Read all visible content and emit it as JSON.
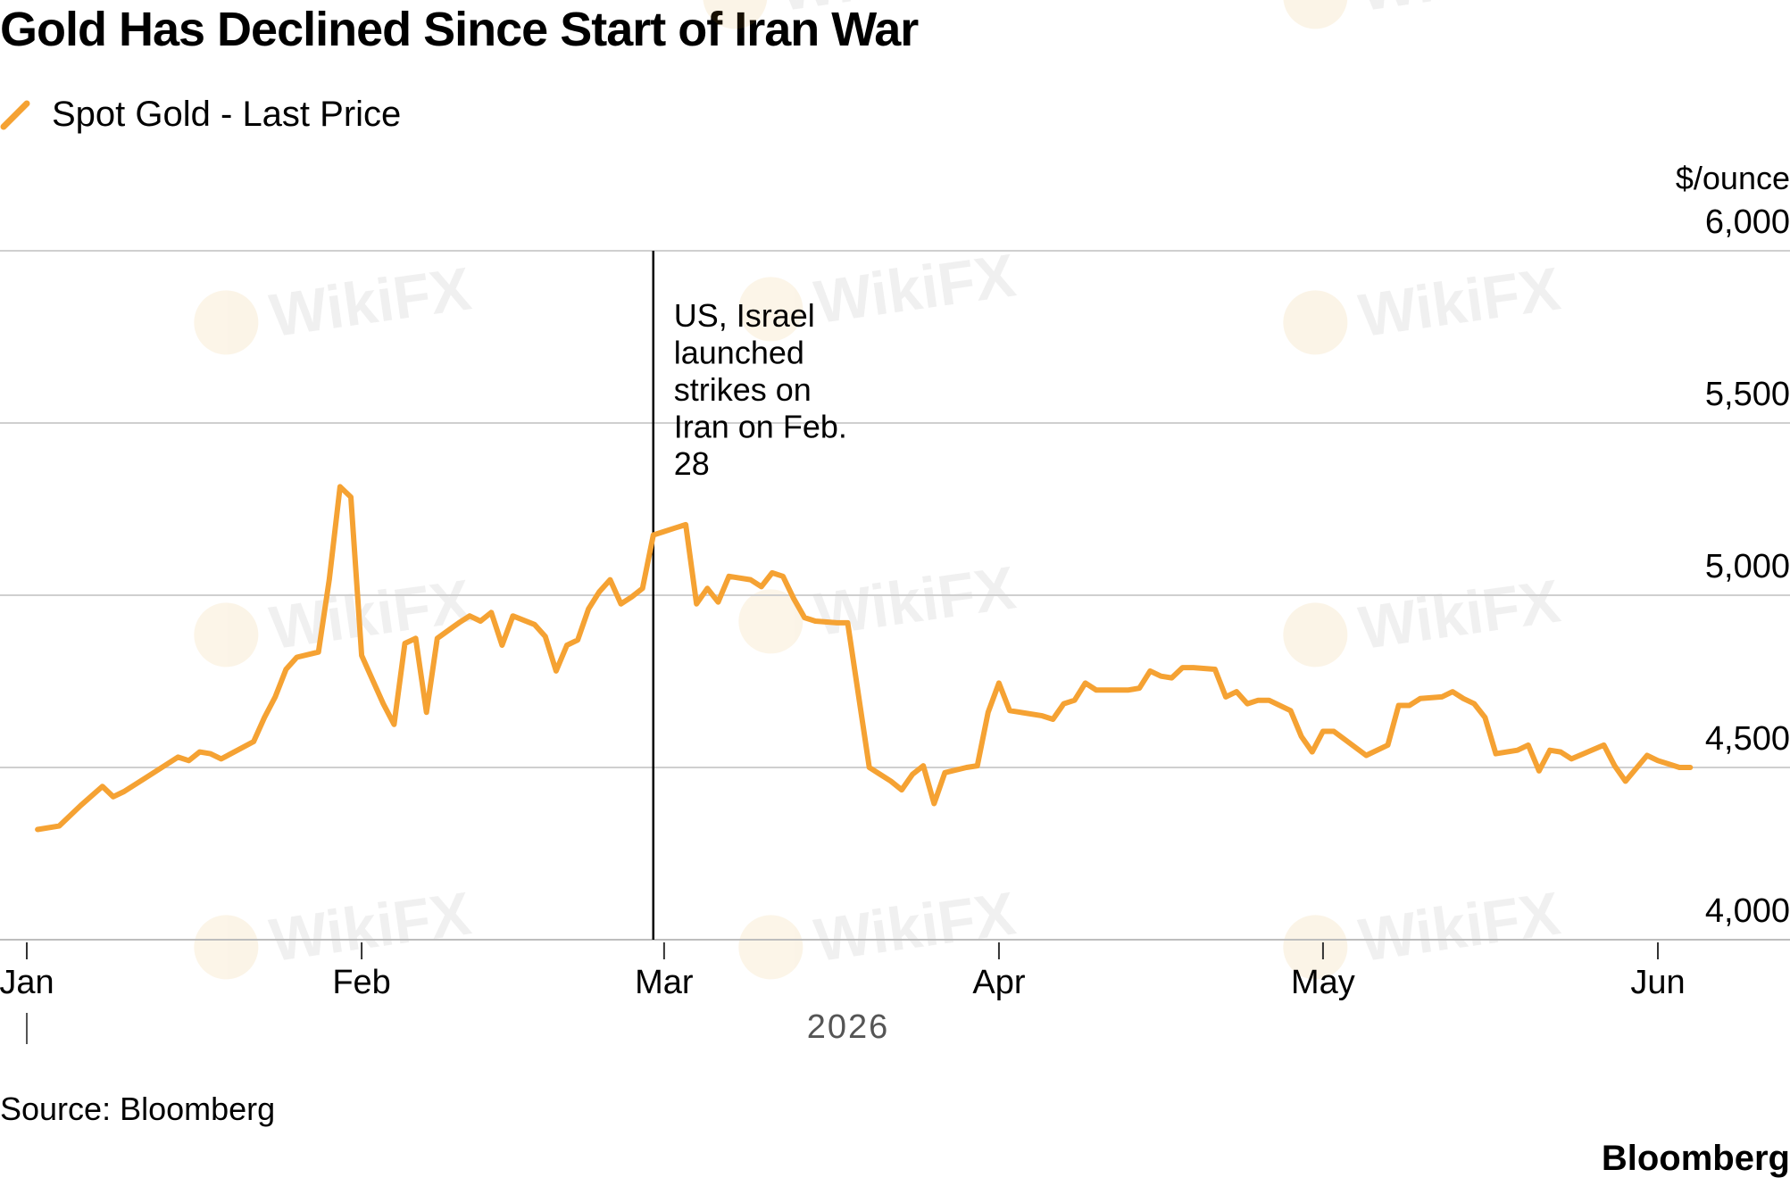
{
  "title": "Gold Has Declined Since Start of Iran War",
  "legend": {
    "label": "Spot Gold - Last Price",
    "color": "#F5A233"
  },
  "source": "Source: Bloomberg",
  "brand": "Bloomberg",
  "watermark": "WikiFX",
  "chart_data": {
    "type": "line",
    "y_unit": "$/ounce",
    "ylim": [
      4000,
      6000
    ],
    "y_ticks": [
      {
        "value": 6000,
        "label": "6,000"
      },
      {
        "value": 5500,
        "label": "5,500"
      },
      {
        "value": 5000,
        "label": "5,000"
      },
      {
        "value": 4500,
        "label": "4,500"
      },
      {
        "value": 4000,
        "label": "4,000"
      }
    ],
    "y_axis_side": "right",
    "grid": true,
    "x_ticks": [
      {
        "date": "2026-01-01",
        "label": "Jan"
      },
      {
        "date": "2026-02-01",
        "label": "Feb"
      },
      {
        "date": "2026-03-01",
        "label": "Mar"
      },
      {
        "date": "2026-04-01",
        "label": "Apr"
      },
      {
        "date": "2026-05-01",
        "label": "May"
      },
      {
        "date": "2026-06-01",
        "label": "Jun"
      }
    ],
    "x_year_label": "2026",
    "annotation": {
      "date": "2026-02-28",
      "lines": [
        "US, Israel",
        "launched",
        "strikes on",
        "Iran on Feb.",
        "28"
      ]
    },
    "series": [
      {
        "name": "Spot Gold - Last Price",
        "color": "#F5A233",
        "points": [
          [
            "2026-01-02",
            4320
          ],
          [
            "2026-01-04",
            4330
          ],
          [
            "2026-01-06",
            4390
          ],
          [
            "2026-01-08",
            4445
          ],
          [
            "2026-01-09",
            4415
          ],
          [
            "2026-01-10",
            4430
          ],
          [
            "2026-01-12",
            4470
          ],
          [
            "2026-01-15",
            4530
          ],
          [
            "2026-01-16",
            4520
          ],
          [
            "2026-01-17",
            4545
          ],
          [
            "2026-01-18",
            4540
          ],
          [
            "2026-01-19",
            4525
          ],
          [
            "2026-01-22",
            4575
          ],
          [
            "2026-01-23",
            4645
          ],
          [
            "2026-01-24",
            4705
          ],
          [
            "2026-01-25",
            4785
          ],
          [
            "2026-01-26",
            4820
          ],
          [
            "2026-01-28",
            4835
          ],
          [
            "2026-01-29",
            5045
          ],
          [
            "2026-01-30",
            5315
          ],
          [
            "2026-01-31",
            5285
          ],
          [
            "2026-02-01",
            4825
          ],
          [
            "2026-02-02",
            4755
          ],
          [
            "2026-02-03",
            4685
          ],
          [
            "2026-02-04",
            4625
          ],
          [
            "2026-02-05",
            4860
          ],
          [
            "2026-02-06",
            4875
          ],
          [
            "2026-02-07",
            4660
          ],
          [
            "2026-02-08",
            4875
          ],
          [
            "2026-02-10",
            4920
          ],
          [
            "2026-02-11",
            4940
          ],
          [
            "2026-02-12",
            4925
          ],
          [
            "2026-02-13",
            4950
          ],
          [
            "2026-02-14",
            4855
          ],
          [
            "2026-02-15",
            4940
          ],
          [
            "2026-02-17",
            4915
          ],
          [
            "2026-02-18",
            4880
          ],
          [
            "2026-02-19",
            4780
          ],
          [
            "2026-02-20",
            4855
          ],
          [
            "2026-02-21",
            4870
          ],
          [
            "2026-02-22",
            4960
          ],
          [
            "2026-02-23",
            5010
          ],
          [
            "2026-02-24",
            5045
          ],
          [
            "2026-02-25",
            4975
          ],
          [
            "2026-02-26",
            4995
          ],
          [
            "2026-02-27",
            5020
          ],
          [
            "2026-02-28",
            5175
          ],
          [
            "2026-03-01",
            5185
          ],
          [
            "2026-03-02",
            5195
          ],
          [
            "2026-03-03",
            5205
          ],
          [
            "2026-03-04",
            4975
          ],
          [
            "2026-03-05",
            5020
          ],
          [
            "2026-03-06",
            4980
          ],
          [
            "2026-03-07",
            5055
          ],
          [
            "2026-03-09",
            5045
          ],
          [
            "2026-03-10",
            5025
          ],
          [
            "2026-03-11",
            5065
          ],
          [
            "2026-03-12",
            5055
          ],
          [
            "2026-03-13",
            4990
          ],
          [
            "2026-03-14",
            4935
          ],
          [
            "2026-03-15",
            4925
          ],
          [
            "2026-03-17",
            4920
          ],
          [
            "2026-03-18",
            4920
          ],
          [
            "2026-03-20",
            4500
          ],
          [
            "2026-03-21",
            4480
          ],
          [
            "2026-03-22",
            4460
          ],
          [
            "2026-03-23",
            4435
          ],
          [
            "2026-03-24",
            4480
          ],
          [
            "2026-03-25",
            4505
          ],
          [
            "2026-03-26",
            4395
          ],
          [
            "2026-03-27",
            4485
          ],
          [
            "2026-03-29",
            4500
          ],
          [
            "2026-03-30",
            4505
          ],
          [
            "2026-03-31",
            4660
          ],
          [
            "2026-04-01",
            4745
          ],
          [
            "2026-04-02",
            4665
          ],
          [
            "2026-04-03",
            4660
          ],
          [
            "2026-04-05",
            4650
          ],
          [
            "2026-04-06",
            4640
          ],
          [
            "2026-04-07",
            4685
          ],
          [
            "2026-04-08",
            4695
          ],
          [
            "2026-04-09",
            4745
          ],
          [
            "2026-04-10",
            4725
          ],
          [
            "2026-04-11",
            4725
          ],
          [
            "2026-04-13",
            4725
          ],
          [
            "2026-04-14",
            4730
          ],
          [
            "2026-04-15",
            4780
          ],
          [
            "2026-04-16",
            4765
          ],
          [
            "2026-04-17",
            4760
          ],
          [
            "2026-04-18",
            4790
          ],
          [
            "2026-04-19",
            4790
          ],
          [
            "2026-04-21",
            4785
          ],
          [
            "2026-04-22",
            4705
          ],
          [
            "2026-04-23",
            4720
          ],
          [
            "2026-04-24",
            4685
          ],
          [
            "2026-04-25",
            4695
          ],
          [
            "2026-04-26",
            4695
          ],
          [
            "2026-04-28",
            4665
          ],
          [
            "2026-04-29",
            4590
          ],
          [
            "2026-04-30",
            4545
          ],
          [
            "2026-05-01",
            4605
          ],
          [
            "2026-05-02",
            4605
          ],
          [
            "2026-05-05",
            4535
          ],
          [
            "2026-05-07",
            4565
          ],
          [
            "2026-05-08",
            4680
          ],
          [
            "2026-05-09",
            4680
          ],
          [
            "2026-05-10",
            4700
          ],
          [
            "2026-05-12",
            4705
          ],
          [
            "2026-05-13",
            4720
          ],
          [
            "2026-05-14",
            4700
          ],
          [
            "2026-05-15",
            4685
          ],
          [
            "2026-05-16",
            4645
          ],
          [
            "2026-05-17",
            4540
          ],
          [
            "2026-05-19",
            4550
          ],
          [
            "2026-05-20",
            4565
          ],
          [
            "2026-05-21",
            4490
          ],
          [
            "2026-05-22",
            4550
          ],
          [
            "2026-05-23",
            4545
          ],
          [
            "2026-05-24",
            4525
          ],
          [
            "2026-05-27",
            4565
          ],
          [
            "2026-05-28",
            4505
          ],
          [
            "2026-05-29",
            4460
          ],
          [
            "2026-05-31",
            4535
          ],
          [
            "2026-06-01",
            4520
          ],
          [
            "2026-06-02",
            4510
          ],
          [
            "2026-06-03",
            4500
          ],
          [
            "2026-06-04",
            4500
          ]
        ]
      }
    ]
  }
}
